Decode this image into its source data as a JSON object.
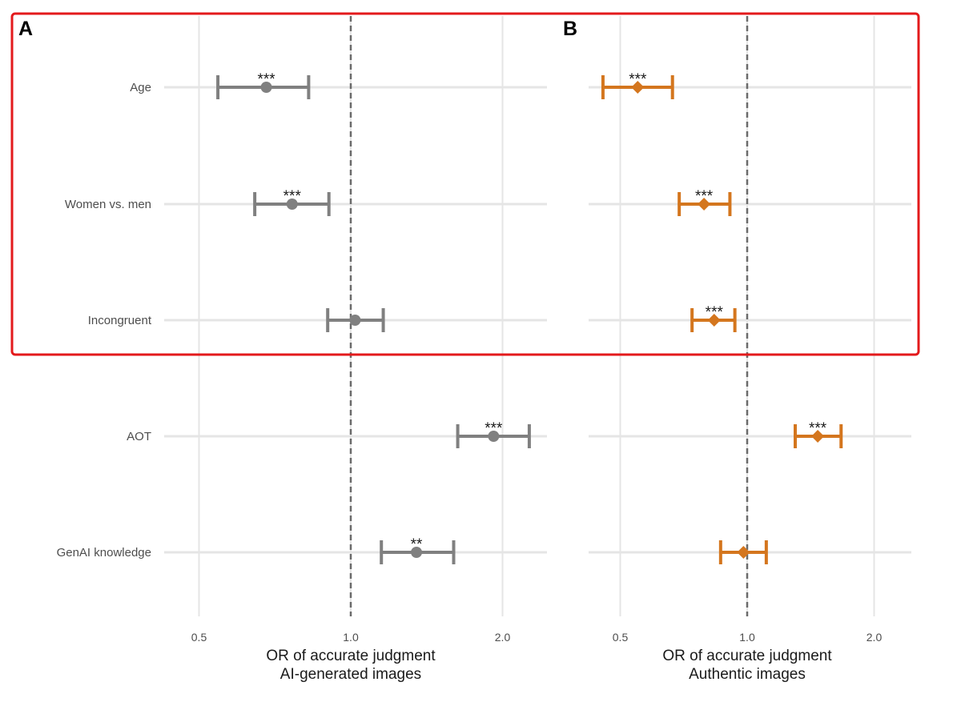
{
  "chart_data": {
    "type": "forest",
    "categories": [
      "Age",
      "Women vs. men",
      "Incongruent",
      "AOT",
      "GenAI knowledge"
    ],
    "x_scale": "log",
    "x_ticks": [
      0.5,
      1.0,
      2.0
    ],
    "x_tick_labels": [
      "0.5",
      "1.0",
      "2.0"
    ],
    "reference_line": 1.0,
    "grid": true,
    "highlight_box": {
      "categories": [
        "Age",
        "Women vs. men",
        "Incongruent"
      ],
      "color": "#e31a1c"
    },
    "panels": [
      {
        "letter": "A",
        "xlabel": [
          "OR of accurate judgment",
          "AI-generated images"
        ],
        "xlim": [
          0.4,
          2.7
        ],
        "color": "#808080",
        "marker": "circle",
        "points": [
          {
            "category": "Age",
            "estimate": 0.68,
            "lower": 0.545,
            "upper": 0.825,
            "sig": "***"
          },
          {
            "category": "Women vs. men",
            "estimate": 0.765,
            "lower": 0.645,
            "upper": 0.905,
            "sig": "***"
          },
          {
            "category": "Incongruent",
            "estimate": 1.02,
            "lower": 0.9,
            "upper": 1.16,
            "sig": ""
          },
          {
            "category": "AOT",
            "estimate": 1.92,
            "lower": 1.63,
            "upper": 2.26,
            "sig": "***"
          },
          {
            "category": "GenAI knowledge",
            "estimate": 1.35,
            "lower": 1.15,
            "upper": 1.6,
            "sig": "**"
          }
        ]
      },
      {
        "letter": "B",
        "xlabel": [
          "OR of accurate judgment",
          "Authentic images"
        ],
        "xlim": [
          0.39,
          2.6
        ],
        "color": "#d4761e",
        "marker": "diamond",
        "points": [
          {
            "category": "Age",
            "estimate": 0.55,
            "lower": 0.455,
            "upper": 0.665,
            "sig": "***"
          },
          {
            "category": "Women vs. men",
            "estimate": 0.79,
            "lower": 0.69,
            "upper": 0.91,
            "sig": "***"
          },
          {
            "category": "Incongruent",
            "estimate": 0.835,
            "lower": 0.74,
            "upper": 0.935,
            "sig": "***"
          },
          {
            "category": "AOT",
            "estimate": 1.47,
            "lower": 1.3,
            "upper": 1.67,
            "sig": "***"
          },
          {
            "category": "GenAI knowledge",
            "estimate": 0.98,
            "lower": 0.865,
            "upper": 1.11,
            "sig": ""
          }
        ]
      }
    ]
  }
}
